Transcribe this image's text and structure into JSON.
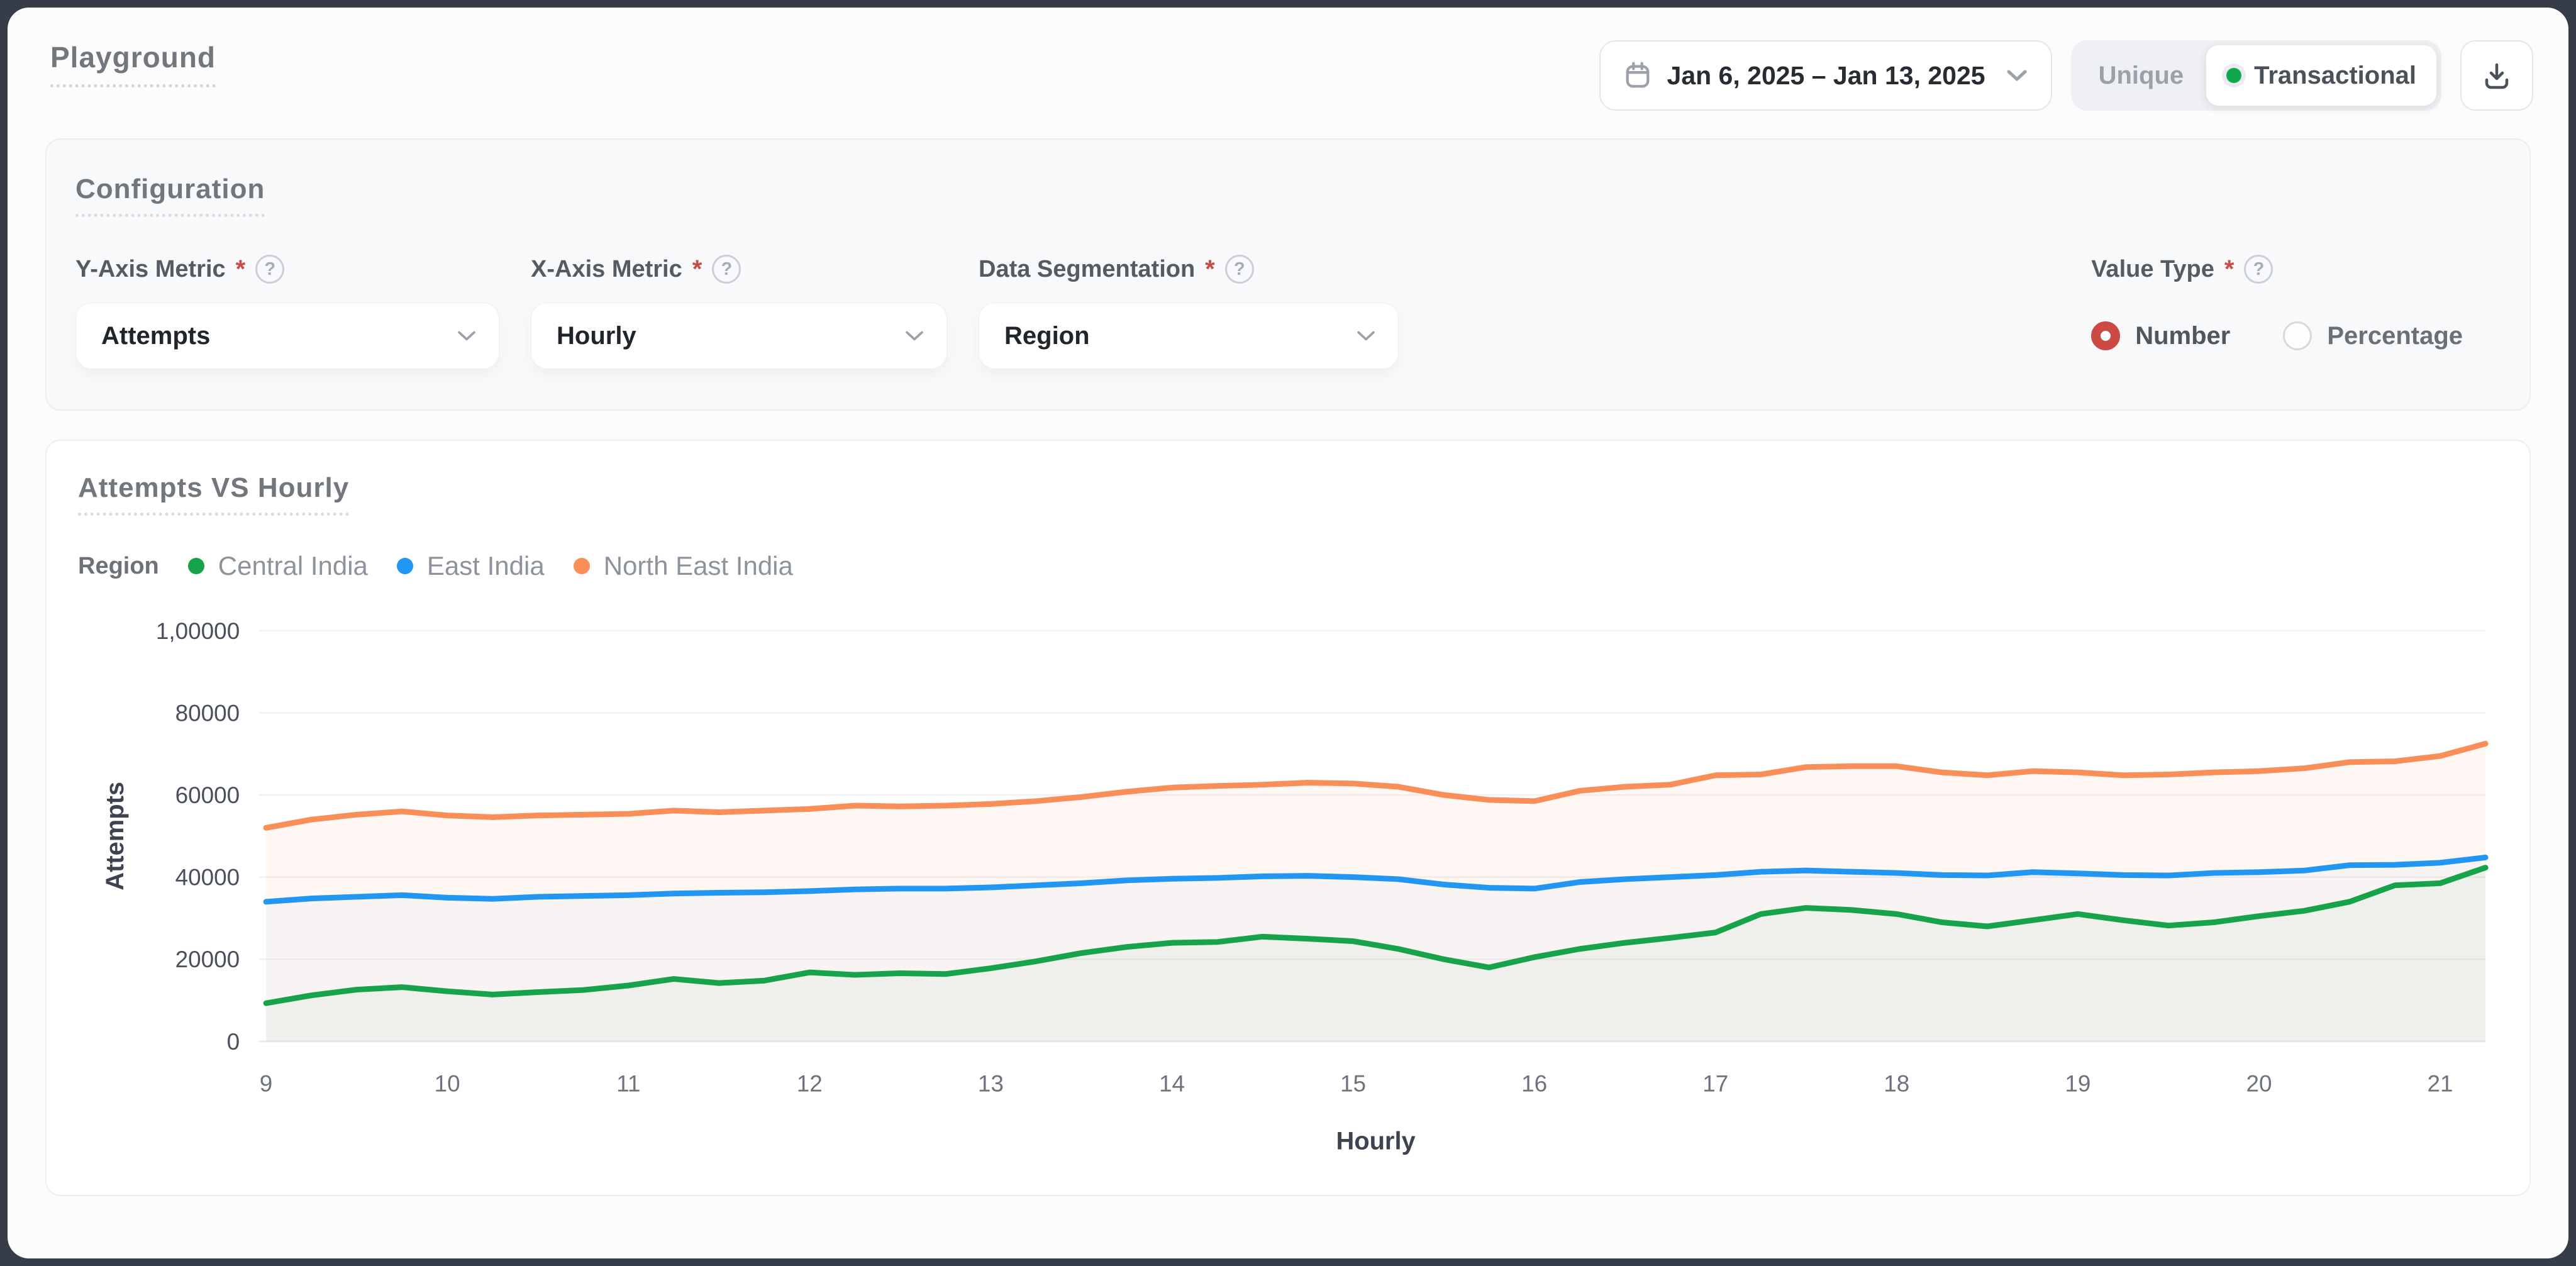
{
  "frame": {
    "bg": "#363c48",
    "page_bg": "#fcfcfd"
  },
  "header": {
    "title": "Playground",
    "date_range": "Jan 6, 2025 – Jan 13, 2025",
    "toggle": {
      "active_dot_color": "#10a84e",
      "options": [
        {
          "label": "Unique",
          "active": false
        },
        {
          "label": "Transactional",
          "active": true
        }
      ]
    }
  },
  "config": {
    "title": "Configuration",
    "help_glyph": "?",
    "fields": [
      {
        "label": "Y-Axis Metric",
        "required": "*",
        "value": "Attempts"
      },
      {
        "label": "X-Axis Metric",
        "required": "*",
        "value": "Hourly"
      },
      {
        "label": "Data Segmentation",
        "required": "*",
        "value": "Region"
      }
    ],
    "value_type": {
      "label": "Value Type",
      "required": "*",
      "selected_color": "#cb4a44",
      "options": [
        {
          "label": "Number",
          "selected": true
        },
        {
          "label": "Percentage",
          "selected": false
        }
      ]
    }
  },
  "chart": {
    "title": "Attempts VS Hourly",
    "legend": {
      "label": "Region",
      "items": [
        {
          "label": "Central India",
          "color": "#16a34a"
        },
        {
          "label": "East India",
          "color": "#2196f3"
        },
        {
          "label": "North East India",
          "color": "#f98e58"
        }
      ]
    }
  },
  "chart_data": {
    "type": "line",
    "title": "Attempts VS Hourly",
    "xlabel": "Hourly",
    "ylabel": "Attempts",
    "x_range": [
      9,
      21.25
    ],
    "ylim": [
      0,
      100000
    ],
    "grid": true,
    "legend_position": "top-left",
    "x_ticks": [
      9,
      10,
      11,
      12,
      13,
      14,
      15,
      16,
      17,
      18,
      19,
      20,
      21
    ],
    "y_ticks": [
      {
        "value": 0,
        "label": "0"
      },
      {
        "value": 20000,
        "label": "20000"
      },
      {
        "value": 40000,
        "label": "40000"
      },
      {
        "value": 60000,
        "label": "60000"
      },
      {
        "value": 80000,
        "label": "80000"
      },
      {
        "value": 100000,
        "label": "1,00000"
      }
    ],
    "x": [
      9,
      9.25,
      9.5,
      9.75,
      10,
      10.25,
      10.5,
      10.75,
      11,
      11.25,
      11.5,
      11.75,
      12,
      12.25,
      12.5,
      12.75,
      13,
      13.25,
      13.5,
      13.75,
      14,
      14.25,
      14.5,
      14.75,
      15,
      15.25,
      15.5,
      15.75,
      16,
      16.25,
      16.5,
      16.75,
      17,
      17.25,
      17.5,
      17.75,
      18,
      18.25,
      18.5,
      18.75,
      19,
      19.25,
      19.5,
      19.75,
      20,
      20.25,
      20.5,
      20.75,
      21,
      21.25
    ],
    "series": [
      {
        "name": "Central India",
        "color": "#16a34a",
        "fill": "rgba(22,163,74,0.04)",
        "values": [
          9300,
          11200,
          12600,
          13200,
          12200,
          11400,
          12000,
          12500,
          13600,
          15200,
          14200,
          14800,
          16800,
          16200,
          16600,
          16400,
          17800,
          19500,
          21500,
          23000,
          24000,
          24200,
          25500,
          25000,
          24400,
          22500,
          20000,
          18000,
          20500,
          22500,
          24000,
          25200,
          26500,
          31000,
          32500,
          32000,
          31000,
          29000,
          28000,
          29500,
          31000,
          29500,
          28200,
          29000,
          30500,
          31800,
          34000,
          38000,
          38500,
          42300
        ]
      },
      {
        "name": "East India",
        "color": "#2196f3",
        "fill": "rgba(33,150,243,0.03)",
        "values": [
          34000,
          34800,
          35200,
          35600,
          35000,
          34700,
          35200,
          35400,
          35600,
          36000,
          36200,
          36300,
          36600,
          37000,
          37200,
          37200,
          37500,
          38000,
          38500,
          39200,
          39600,
          39800,
          40200,
          40300,
          40000,
          39500,
          38200,
          37400,
          37200,
          38800,
          39500,
          40000,
          40500,
          41300,
          41600,
          41300,
          41000,
          40500,
          40400,
          41200,
          40900,
          40500,
          40400,
          41000,
          41200,
          41600,
          42900,
          43000,
          43500,
          44800
        ]
      },
      {
        "name": "North East India",
        "color": "#f98e58",
        "fill": "rgba(249,142,88,0.07)",
        "values": [
          52000,
          54000,
          55200,
          56000,
          55000,
          54600,
          55000,
          55200,
          55400,
          56200,
          55800,
          56200,
          56600,
          57400,
          57200,
          57400,
          57800,
          58500,
          59500,
          60800,
          61800,
          62200,
          62500,
          63000,
          62800,
          62000,
          60000,
          58800,
          58500,
          61000,
          62000,
          62500,
          64800,
          65000,
          66800,
          67000,
          67000,
          65500,
          64800,
          65800,
          65500,
          64800,
          65000,
          65500,
          65800,
          66500,
          68000,
          68200,
          69500,
          72500
        ]
      }
    ]
  }
}
